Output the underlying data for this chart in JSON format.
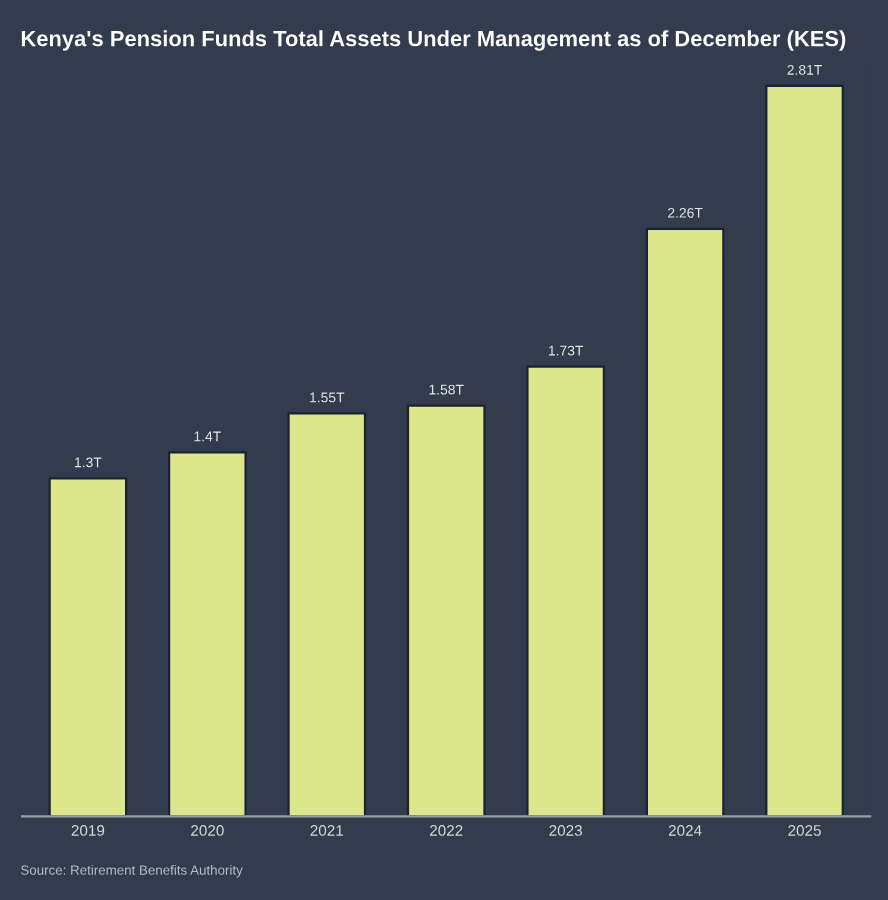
{
  "chart_data": {
    "type": "bar",
    "title": "Kenya's Pension Funds Total Assets Under Management as of December (KES)",
    "categories": [
      "2019",
      "2020",
      "2021",
      "2022",
      "2023",
      "2024",
      "2025"
    ],
    "values": [
      1.3,
      1.4,
      1.55,
      1.58,
      1.73,
      2.26,
      2.81
    ],
    "value_labels": [
      "1.3T",
      "1.4T",
      "1.55T",
      "1.58T",
      "1.73T",
      "2.26T",
      "2.81T"
    ],
    "color": "#dce78b",
    "grid": false,
    "legend": false,
    "annotations": [
      "Source: Retirement Benefits Authority"
    ]
  }
}
